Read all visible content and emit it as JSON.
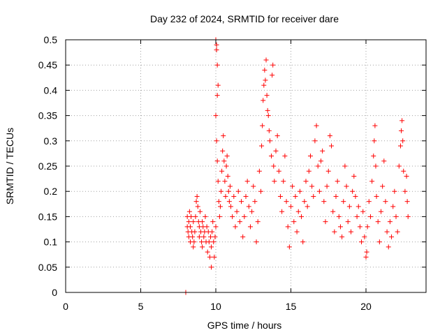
{
  "chart_data": {
    "type": "scatter",
    "title": "Day 232 of 2024, SRMTID for receiver dare",
    "xlabel": "GPS time / hours",
    "ylabel": "SRMTID / TECUs",
    "xlim": [
      0,
      24
    ],
    "ylim": [
      0,
      0.5
    ],
    "xticks": [
      0,
      5,
      10,
      15,
      20
    ],
    "xtick_labels": [
      "0",
      "5",
      "10",
      "15",
      "20"
    ],
    "yticks": [
      0,
      0.05,
      0.1,
      0.15,
      0.2,
      0.25,
      0.3,
      0.35,
      0.4,
      0.45,
      0.5
    ],
    "ytick_labels": [
      "0",
      "0.05",
      "0.1",
      "0.15",
      "0.2",
      "0.25",
      "0.3",
      "0.35",
      "0.4",
      "0.45",
      "0.5"
    ],
    "grid": true,
    "legend": "none",
    "marker": "plus",
    "color": "#ff0000",
    "series": [
      {
        "values": [
          [
            8.0,
            0.0
          ],
          [
            8.0,
            0.0
          ],
          [
            8.1,
            0.13
          ],
          [
            8.1,
            0.15
          ],
          [
            8.15,
            0.12
          ],
          [
            8.2,
            0.14
          ],
          [
            8.2,
            0.11
          ],
          [
            8.25,
            0.16
          ],
          [
            8.3,
            0.13
          ],
          [
            8.3,
            0.1
          ],
          [
            8.35,
            0.15
          ],
          [
            8.4,
            0.12
          ],
          [
            8.45,
            0.11
          ],
          [
            8.5,
            0.09
          ],
          [
            8.5,
            0.14
          ],
          [
            8.55,
            0.1
          ],
          [
            8.6,
            0.12
          ],
          [
            8.65,
            0.15
          ],
          [
            8.7,
            0.18
          ],
          [
            8.75,
            0.19
          ],
          [
            8.8,
            0.17
          ],
          [
            8.85,
            0.14
          ],
          [
            8.9,
            0.13
          ],
          [
            8.9,
            0.11
          ],
          [
            8.95,
            0.16
          ],
          [
            9.0,
            0.12
          ],
          [
            9.05,
            0.1
          ],
          [
            9.1,
            0.14
          ],
          [
            9.1,
            0.09
          ],
          [
            9.15,
            0.13
          ],
          [
            9.2,
            0.11
          ],
          [
            9.25,
            0.12
          ],
          [
            9.3,
            0.15
          ],
          [
            9.35,
            0.1
          ],
          [
            9.4,
            0.13
          ],
          [
            9.45,
            0.08
          ],
          [
            9.5,
            0.12
          ],
          [
            9.55,
            0.1
          ],
          [
            9.6,
            0.07
          ],
          [
            9.65,
            0.11
          ],
          [
            9.7,
            0.09
          ],
          [
            9.7,
            0.05
          ],
          [
            9.75,
            0.12
          ],
          [
            9.8,
            0.14
          ],
          [
            9.85,
            0.1
          ],
          [
            9.9,
            0.07
          ],
          [
            9.95,
            0.11
          ],
          [
            10.0,
            0.13
          ],
          [
            10.0,
            0.5
          ],
          [
            10.05,
            0.49
          ],
          [
            10.05,
            0.48
          ],
          [
            10.1,
            0.45
          ],
          [
            10.1,
            0.39
          ],
          [
            10.15,
            0.41
          ],
          [
            10.0,
            0.35
          ],
          [
            10.05,
            0.3
          ],
          [
            10.1,
            0.26
          ],
          [
            10.15,
            0.22
          ],
          [
            10.2,
            0.18
          ],
          [
            10.25,
            0.15
          ],
          [
            10.3,
            0.17
          ],
          [
            10.35,
            0.2
          ],
          [
            10.4,
            0.24
          ],
          [
            10.45,
            0.28
          ],
          [
            10.5,
            0.31
          ],
          [
            10.55,
            0.26
          ],
          [
            10.6,
            0.22
          ],
          [
            10.65,
            0.19
          ],
          [
            10.7,
            0.25
          ],
          [
            10.75,
            0.27
          ],
          [
            10.8,
            0.23
          ],
          [
            10.85,
            0.2
          ],
          [
            10.9,
            0.18
          ],
          [
            10.95,
            0.21
          ],
          [
            11.0,
            0.17
          ],
          [
            11.1,
            0.15
          ],
          [
            11.2,
            0.19
          ],
          [
            11.3,
            0.13
          ],
          [
            11.4,
            0.16
          ],
          [
            11.5,
            0.2
          ],
          [
            11.6,
            0.14
          ],
          [
            11.7,
            0.18
          ],
          [
            11.8,
            0.11
          ],
          [
            11.9,
            0.15
          ],
          [
            12.0,
            0.19
          ],
          [
            12.1,
            0.22
          ],
          [
            12.2,
            0.17
          ],
          [
            12.3,
            0.13
          ],
          [
            12.4,
            0.16
          ],
          [
            12.5,
            0.21
          ],
          [
            12.6,
            0.18
          ],
          [
            12.7,
            0.1
          ],
          [
            12.8,
            0.14
          ],
          [
            12.9,
            0.24
          ],
          [
            13.0,
            0.2
          ],
          [
            13.05,
            0.29
          ],
          [
            13.1,
            0.33
          ],
          [
            13.15,
            0.38
          ],
          [
            13.2,
            0.41
          ],
          [
            13.25,
            0.44
          ],
          [
            13.3,
            0.42
          ],
          [
            13.35,
            0.46
          ],
          [
            13.4,
            0.39
          ],
          [
            13.45,
            0.36
          ],
          [
            13.5,
            0.35
          ],
          [
            13.55,
            0.32
          ],
          [
            13.6,
            0.3
          ],
          [
            13.7,
            0.27
          ],
          [
            13.75,
            0.43
          ],
          [
            13.8,
            0.45
          ],
          [
            13.85,
            0.25
          ],
          [
            13.9,
            0.22
          ],
          [
            14.0,
            0.28
          ],
          [
            14.1,
            0.31
          ],
          [
            14.2,
            0.24
          ],
          [
            14.3,
            0.19
          ],
          [
            14.4,
            0.16
          ],
          [
            14.5,
            0.22
          ],
          [
            14.6,
            0.27
          ],
          [
            14.7,
            0.18
          ],
          [
            14.8,
            0.13
          ],
          [
            14.9,
            0.09
          ],
          [
            15.0,
            0.17
          ],
          [
            15.1,
            0.21
          ],
          [
            15.2,
            0.14
          ],
          [
            15.3,
            0.19
          ],
          [
            15.4,
            0.12
          ],
          [
            15.5,
            0.16
          ],
          [
            15.6,
            0.2
          ],
          [
            15.7,
            0.15
          ],
          [
            15.8,
            0.1
          ],
          [
            15.9,
            0.18
          ],
          [
            16.0,
            0.22
          ],
          [
            16.1,
            0.17
          ],
          [
            16.2,
            0.24
          ],
          [
            16.3,
            0.27
          ],
          [
            16.4,
            0.21
          ],
          [
            16.5,
            0.19
          ],
          [
            16.6,
            0.3
          ],
          [
            16.7,
            0.33
          ],
          [
            16.8,
            0.25
          ],
          [
            16.9,
            0.2
          ],
          [
            17.0,
            0.26
          ],
          [
            17.1,
            0.28
          ],
          [
            17.2,
            0.18
          ],
          [
            17.3,
            0.14
          ],
          [
            17.4,
            0.21
          ],
          [
            17.5,
            0.24
          ],
          [
            17.6,
            0.31
          ],
          [
            17.7,
            0.29
          ],
          [
            17.8,
            0.16
          ],
          [
            17.9,
            0.12
          ],
          [
            18.0,
            0.19
          ],
          [
            18.1,
            0.22
          ],
          [
            18.2,
            0.15
          ],
          [
            18.3,
            0.13
          ],
          [
            18.4,
            0.11
          ],
          [
            18.5,
            0.18
          ],
          [
            18.6,
            0.25
          ],
          [
            18.7,
            0.21
          ],
          [
            18.8,
            0.14
          ],
          [
            18.9,
            0.17
          ],
          [
            19.0,
            0.12
          ],
          [
            19.1,
            0.2
          ],
          [
            19.2,
            0.23
          ],
          [
            19.3,
            0.19
          ],
          [
            19.4,
            0.15
          ],
          [
            19.5,
            0.17
          ],
          [
            19.6,
            0.13
          ],
          [
            19.7,
            0.1
          ],
          [
            19.8,
            0.16
          ],
          [
            19.9,
            0.11
          ],
          [
            20.0,
            0.07
          ],
          [
            20.05,
            0.08
          ],
          [
            20.1,
            0.13
          ],
          [
            20.2,
            0.18
          ],
          [
            20.3,
            0.15
          ],
          [
            20.4,
            0.22
          ],
          [
            20.5,
            0.27
          ],
          [
            20.55,
            0.3
          ],
          [
            20.6,
            0.33
          ],
          [
            20.65,
            0.25
          ],
          [
            20.7,
            0.19
          ],
          [
            20.8,
            0.14
          ],
          [
            20.9,
            0.1
          ],
          [
            21.0,
            0.16
          ],
          [
            21.1,
            0.21
          ],
          [
            21.2,
            0.26
          ],
          [
            21.3,
            0.18
          ],
          [
            21.4,
            0.12
          ],
          [
            21.5,
            0.09
          ],
          [
            21.6,
            0.14
          ],
          [
            21.7,
            0.11
          ],
          [
            21.8,
            0.17
          ],
          [
            21.9,
            0.2
          ],
          [
            22.0,
            0.15
          ],
          [
            22.1,
            0.12
          ],
          [
            22.2,
            0.25
          ],
          [
            22.3,
            0.29
          ],
          [
            22.35,
            0.32
          ],
          [
            22.4,
            0.34
          ],
          [
            22.45,
            0.3
          ],
          [
            22.5,
            0.24
          ],
          [
            22.6,
            0.2
          ],
          [
            22.7,
            0.23
          ],
          [
            22.75,
            0.18
          ],
          [
            22.8,
            0.15
          ]
        ]
      }
    ]
  }
}
